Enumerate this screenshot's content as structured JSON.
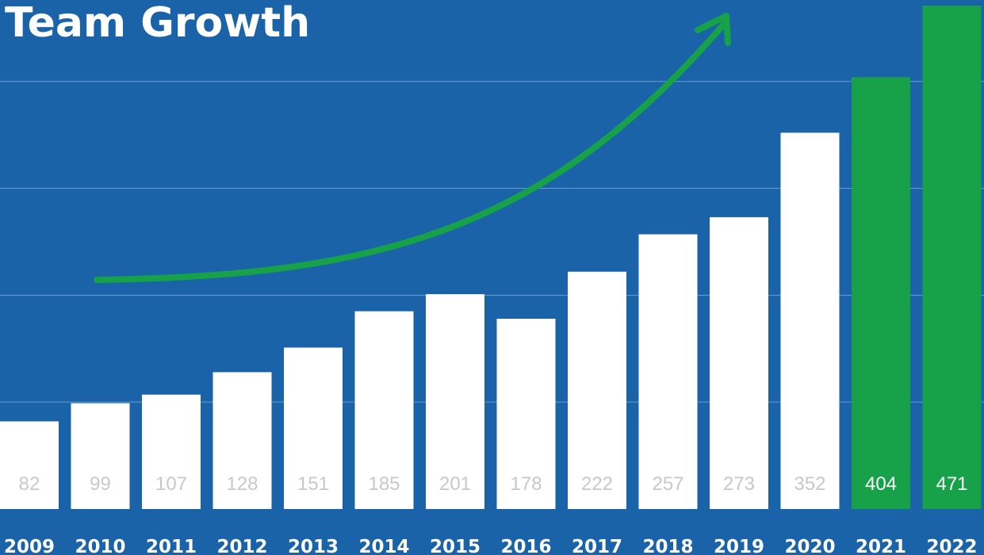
{
  "colors": {
    "background": "#1a63a8",
    "bar_default": "#ffffff",
    "bar_highlight": "#17a148",
    "label_on_default": "#c8c8c8",
    "label_on_highlight": "#ffffff",
    "gridline": "#6b9ccc",
    "arrow": "#17a148",
    "text": "#ffffff"
  },
  "chart_data": {
    "type": "bar",
    "title": "Team Growth",
    "categories": [
      "2009",
      "2010",
      "2011",
      "2012",
      "2013",
      "2014",
      "2015",
      "2016",
      "2017",
      "2018",
      "2019",
      "2020",
      "2021",
      "2022"
    ],
    "values": [
      82,
      99,
      107,
      128,
      151,
      185,
      201,
      178,
      222,
      257,
      273,
      352,
      404,
      471
    ],
    "highlighted_categories": [
      "2021",
      "2022"
    ],
    "ylim": [
      0,
      471
    ],
    "grid": true,
    "annotation": "upward-trend-arrow",
    "xlabel": "",
    "ylabel": ""
  }
}
